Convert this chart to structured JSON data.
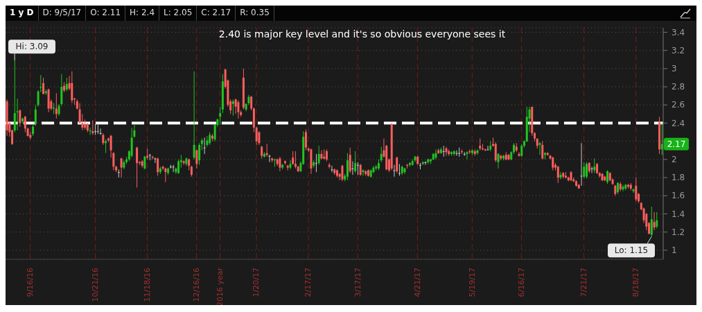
{
  "chart_data": {
    "type": "candlestick",
    "title": "1 y D",
    "subtitle": "D: 9/5/17  O: 2.11  H: 2.4  L: 2.05  C: 2.17  R: 0.35",
    "colors": [
      "#ff5e5e",
      "#ff5e5e",
      "#ff5e5e",
      "#22c322",
      "#22c322",
      "#ff5e5e",
      "#22c322",
      "#ff5e5e",
      "#ff5e5e",
      "#ff5e5e",
      "#22c322",
      "#22c322",
      "#22c322",
      "#22c322",
      "#ff5e5e",
      "#22c322",
      "#ff5e5e",
      "#ff5e5e",
      "#22c322",
      "#ff5e5e",
      "#22c322",
      "#22c322",
      "#ff5e5e",
      "#22c322",
      "#ff5e5e",
      "#ff5e5e",
      "#ff5e5e",
      "#ff5e5e",
      "#ff5e5e",
      "#ff5e5e",
      "#ff5e5e",
      "#ff5e5e",
      "#22c322",
      "#ff5e5e",
      "#c8c8c8",
      "#c8c8c8",
      "#c8c8c8",
      "#ff5e5e",
      "#22c322",
      "#ff5e5e",
      "#ff5e5e",
      "#ff5e5e",
      "#ff5e5e",
      "#c8c8c8",
      "#ff5e5e",
      "#22c322",
      "#22c322",
      "#22c322",
      "#22c322",
      "#22c322",
      "#ff5e5e",
      "#ff5e5e",
      "#ff5e5e",
      "#22c322",
      "#ff5e5e",
      "#c8c8c8",
      "#ff5e5e",
      "#c8c8c8",
      "#ff5e5e",
      "#22c322",
      "#ff5e5e",
      "#ff5e5e",
      "#22c322",
      "#c8c8c8",
      "#c8c8c8",
      "#22c322",
      "#22c322",
      "#22c322",
      "#ff5e5e",
      "#22c322",
      "#ff5e5e",
      "#ff5e5e",
      "#22c322",
      "#ff5e5e",
      "#22c322",
      "#22c322",
      "#c8c8c8",
      "#22c322",
      "#22c322",
      "#ff5e5e",
      "#22c322",
      "#22c322",
      "#22c322",
      "#22c322",
      "#ff5e5e",
      "#ff5e5e",
      "#ff5e5e",
      "#22c322",
      "#ff5e5e",
      "#ff5e5e",
      "#ff5e5e",
      "#ff5e5e",
      "#22c322",
      "#22c322",
      "#ff5e5e",
      "#ff5e5e",
      "#ff5e5e",
      "#ff5e5e",
      "#ff5e5e",
      "#22c322",
      "#ff5e5e",
      "#c8c8c8",
      "#ff5e5e",
      "#22c322",
      "#ff5e5e",
      "#ff5e5e",
      "#22c322",
      "#ff5e5e",
      "#ff5e5e",
      "#22c322",
      "#ff5e5e",
      "#ff5e5e",
      "#ff5e5e",
      "#22c322",
      "#22c322",
      "#ff5e5e",
      "#ff5e5e",
      "#ff5e5e",
      "#22c322",
      "#c8c8c8",
      "#22c322",
      "#ff5e5e",
      "#ff5e5e",
      "#ff5e5e",
      "#ff5e5e",
      "#c8c8c8",
      "#ff5e5e",
      "#ff5e5e",
      "#ff5e5e",
      "#ff5e5e",
      "#22c322",
      "#22c322",
      "#ff5e5e",
      "#c8c8c8",
      "#22c322",
      "#c8c8c8",
      "#ff5e5e",
      "#22c322",
      "#ff5e5e",
      "#ff5e5e",
      "#22c322",
      "#22c322",
      "#22c322",
      "#22c322",
      "#22c322",
      "#ff5e5e",
      "#ff5e5e",
      "#ff5e5e",
      "#ff5e5e",
      "#c8c8c8",
      "#ff5e5e",
      "#c8c8c8",
      "#22c322",
      "#22c322",
      "#ff5e5e",
      "#22c322",
      "#22c322",
      "#22c322",
      "#ff5e5e",
      "#c8c8c8",
      "#22c322",
      "#c8c8c8",
      "#22c322",
      "#22c322",
      "#22c322",
      "#22c322",
      "#ff5e5e",
      "#22c322",
      "#c8c8c8",
      "#ff5e5e",
      "#ff5e5e",
      "#22c322",
      "#22c322",
      "#c8c8c8",
      "#c8c8c8",
      "#ff5e5e",
      "#c8c8c8",
      "#22c322",
      "#ff5e5e",
      "#22c322",
      "#ff5e5e",
      "#22c322",
      "#ff5e5e",
      "#ff5e5e",
      "#ff5e5e",
      "#c8c8c8",
      "#22c322",
      "#ff5e5e",
      "#ff5e5e",
      "#22c322",
      "#ff5e5e",
      "#22c322",
      "#ff5e5e",
      "#ff5e5e",
      "#22c322",
      "#22c322",
      "#ff5e5e",
      "#ff5e5e",
      "#22c322",
      "#22c322",
      "#22c322",
      "#22c322",
      "#ff5e5e",
      "#ff5e5e",
      "#ff5e5e",
      "#22c322",
      "#ff5e5e",
      "#22c322",
      "#ff5e5e",
      "#ff5e5e",
      "#ff5e5e",
      "#ff5e5e",
      "#ff5e5e",
      "#22c322",
      "#ff5e5e",
      "#ff5e5e",
      "#ff5e5e",
      "#ff5e5e",
      "#ff5e5e",
      "#ff5e5e",
      "#ff5e5e",
      "#c8c8c8",
      "#22c322",
      "#22c322",
      "#ff5e5e",
      "#c8c8c8",
      "#22c322",
      "#ff5e5e",
      "#ff5e5e",
      "#ff5e5e",
      "#ff5e5e",
      "#22c322",
      "#ff5e5e",
      "#ff5e5e",
      "#ff5e5e",
      "#22c322",
      "#ff5e5e",
      "#22c322",
      "#22c322",
      "#ff5e5e",
      "#ff5e5e",
      "#22c322",
      "#ff5e5e",
      "#ff5e5e",
      "#ff5e5e",
      "#ff5e5e",
      "#ff5e5e",
      "#ff5e5e",
      "#22c322",
      "#ff5e5e",
      "#22c322",
      "#ff5e5e",
      "#22c322"
    ],
    "categories": [
      null,
      null,
      null,
      null,
      null,
      null,
      null,
      null,
      null,
      "9/16/16",
      null,
      null,
      null,
      null,
      null,
      null,
      null,
      null,
      null,
      null,
      null,
      null,
      null,
      null,
      null,
      null,
      null,
      null,
      null,
      null,
      null,
      null,
      null,
      null,
      "10/21/16",
      null,
      null,
      null,
      null,
      null,
      null,
      null,
      null,
      null,
      null,
      null,
      null,
      null,
      null,
      null,
      null,
      null,
      null,
      null,
      "11/18/16",
      null,
      null,
      null,
      null,
      null,
      null,
      null,
      null,
      null,
      null,
      null,
      null,
      null,
      null,
      null,
      null,
      null,
      null,
      "12/16/16",
      null,
      null,
      null,
      null,
      null,
      null,
      null,
      null,
      "2016 year",
      null,
      null,
      null,
      null,
      null,
      null,
      null,
      null,
      null,
      null,
      null,
      null,
      null,
      "1/20/17",
      null,
      null,
      null,
      null,
      null,
      null,
      null,
      null,
      null,
      null,
      null,
      null,
      null,
      null,
      null,
      null,
      null,
      null,
      null,
      "2/17/17",
      null,
      null,
      null,
      null,
      null,
      null,
      null,
      null,
      null,
      null,
      null,
      null,
      null,
      null,
      null,
      null,
      null,
      null,
      "3/17/17",
      null,
      null,
      null,
      null,
      null,
      null,
      null,
      null,
      null,
      null,
      null,
      null,
      null,
      null,
      null,
      null,
      null,
      null,
      null,
      null,
      null,
      null,
      "4/21/17",
      null,
      null,
      null,
      null,
      null,
      null,
      null,
      null,
      null,
      null,
      null,
      null,
      null,
      null,
      null,
      null,
      null,
      null,
      null,
      null,
      "5/19/17",
      null,
      null,
      null,
      null,
      null,
      null,
      null,
      null,
      null,
      null,
      null,
      null,
      null,
      null,
      null,
      null,
      null,
      null,
      "6/16/17",
      null,
      null,
      null,
      null,
      null,
      null,
      null,
      null,
      null,
      null,
      null,
      null,
      null,
      null,
      null,
      null,
      null,
      null,
      null,
      null,
      null,
      null,
      null,
      "7/21/17",
      null,
      null,
      null,
      null,
      null,
      null,
      null,
      null,
      null,
      null,
      null,
      null,
      null,
      null,
      null,
      null,
      null,
      null,
      null,
      "8/18/17",
      null,
      null,
      null,
      null,
      null,
      null,
      null,
      null,
      null,
      null
    ],
    "ohlc": [
      [
        2.64,
        2.66,
        2.26,
        2.32
      ],
      [
        2.4,
        2.42,
        2.25,
        2.3
      ],
      [
        2.32,
        2.33,
        2.16,
        2.17
      ],
      [
        2.32,
        3.09,
        2.3,
        2.51
      ],
      [
        2.52,
        2.67,
        2.32,
        2.53
      ],
      [
        2.54,
        2.55,
        2.36,
        2.4
      ],
      [
        2.42,
        2.46,
        2.4,
        2.45
      ],
      [
        2.47,
        2.48,
        2.3,
        2.34
      ],
      [
        2.34,
        2.35,
        2.25,
        2.26
      ],
      [
        2.27,
        2.3,
        2.22,
        2.24
      ],
      [
        2.28,
        2.38,
        2.26,
        2.36
      ],
      [
        2.39,
        2.6,
        2.37,
        2.55
      ],
      [
        2.6,
        2.76,
        2.58,
        2.75
      ],
      [
        2.79,
        2.93,
        2.74,
        2.8
      ],
      [
        2.84,
        2.9,
        2.72,
        2.72
      ],
      [
        2.73,
        2.77,
        2.71,
        2.75
      ],
      [
        2.77,
        2.78,
        2.52,
        2.56
      ],
      [
        2.64,
        2.66,
        2.54,
        2.56
      ],
      [
        2.56,
        2.62,
        2.5,
        2.57
      ],
      [
        2.56,
        2.73,
        2.45,
        2.5
      ],
      [
        2.5,
        2.61,
        2.48,
        2.59
      ],
      [
        2.61,
        2.94,
        2.59,
        2.8
      ],
      [
        2.81,
        2.85,
        2.74,
        2.76
      ],
      [
        2.77,
        2.9,
        2.75,
        2.83
      ],
      [
        2.84,
        2.92,
        2.76,
        2.78
      ],
      [
        2.84,
        2.97,
        2.62,
        2.65
      ],
      [
        2.67,
        2.68,
        2.6,
        2.66
      ],
      [
        2.64,
        2.66,
        2.55,
        2.56
      ],
      [
        2.55,
        2.62,
        2.4,
        2.4
      ],
      [
        2.4,
        2.5,
        2.32,
        2.35
      ],
      [
        2.38,
        2.44,
        2.33,
        2.35
      ],
      [
        2.39,
        2.4,
        2.3,
        2.32
      ],
      [
        2.31,
        2.35,
        2.27,
        2.32
      ],
      [
        2.31,
        2.43,
        2.27,
        2.29
      ],
      [
        2.31,
        2.39,
        2.27,
        2.31
      ],
      [
        2.31,
        2.38,
        2.28,
        2.31
      ],
      [
        2.29,
        2.34,
        2.27,
        2.29
      ],
      [
        2.27,
        2.29,
        2.16,
        2.18
      ],
      [
        2.18,
        2.22,
        2.07,
        2.2
      ],
      [
        2.23,
        2.24,
        2.19,
        2.21
      ],
      [
        2.26,
        2.27,
        2.02,
        2.1
      ],
      [
        2.07,
        2.08,
        1.88,
        1.92
      ],
      [
        1.92,
        1.93,
        1.86,
        1.88
      ],
      [
        1.86,
        1.89,
        1.8,
        1.86
      ],
      [
        2.01,
        2.02,
        1.8,
        1.91
      ],
      [
        1.91,
        1.99,
        1.89,
        1.97
      ],
      [
        1.97,
        2.03,
        1.95,
        2.0
      ],
      [
        2.0,
        2.1,
        1.98,
        2.09
      ],
      [
        2.04,
        2.35,
        2.02,
        2.24
      ],
      [
        2.25,
        2.39,
        2.24,
        2.32
      ],
      [
        2.13,
        2.14,
        1.69,
        1.96
      ],
      [
        1.97,
        1.98,
        1.94,
        1.96
      ],
      [
        1.98,
        1.99,
        1.91,
        1.93
      ],
      [
        1.9,
        2.04,
        1.89,
        2.03
      ],
      [
        2.04,
        2.12,
        2.0,
        2.02
      ],
      [
        2.05,
        2.06,
        1.99,
        2.05
      ],
      [
        2.03,
        2.04,
        2.0,
        2.02
      ],
      [
        2.01,
        2.02,
        1.96,
        2.01
      ],
      [
        2.01,
        2.02,
        1.82,
        1.86
      ],
      [
        1.86,
        1.92,
        1.84,
        1.9
      ],
      [
        1.92,
        1.93,
        1.88,
        1.9
      ],
      [
        1.9,
        1.91,
        1.75,
        1.86
      ],
      [
        1.85,
        1.91,
        1.83,
        1.9
      ],
      [
        1.92,
        1.94,
        1.9,
        1.92
      ],
      [
        1.92,
        1.94,
        1.86,
        1.92
      ],
      [
        1.86,
        1.91,
        1.84,
        1.9
      ],
      [
        1.85,
        2.0,
        1.84,
        1.98
      ],
      [
        1.97,
        2.05,
        1.91,
        1.99
      ],
      [
        1.98,
        1.99,
        1.94,
        1.96
      ],
      [
        1.95,
        2.02,
        1.93,
        2.01
      ],
      [
        2.0,
        2.01,
        1.88,
        1.93
      ],
      [
        1.92,
        1.93,
        1.81,
        1.83
      ],
      [
        2.02,
        2.97,
        2.0,
        2.16
      ],
      [
        2.1,
        2.11,
        1.9,
        1.95
      ],
      [
        1.99,
        2.18,
        1.94,
        2.16
      ],
      [
        2.17,
        2.23,
        2.1,
        2.21
      ],
      [
        2.13,
        2.24,
        2.06,
        2.13
      ],
      [
        2.16,
        2.26,
        2.14,
        2.21
      ],
      [
        2.18,
        2.3,
        2.16,
        2.27
      ],
      [
        2.26,
        2.28,
        2.2,
        2.23
      ],
      [
        2.22,
        2.39,
        2.2,
        2.38
      ],
      [
        2.38,
        2.45,
        2.36,
        2.44
      ],
      [
        2.47,
        2.58,
        2.38,
        2.51
      ],
      [
        2.55,
        2.94,
        2.51,
        2.86
      ],
      [
        2.99,
        3.0,
        2.78,
        2.8
      ],
      [
        2.87,
        2.88,
        2.58,
        2.6
      ],
      [
        2.64,
        2.66,
        2.5,
        2.54
      ],
      [
        2.61,
        2.66,
        2.48,
        2.64
      ],
      [
        2.66,
        2.67,
        2.5,
        2.58
      ],
      [
        2.63,
        2.65,
        2.45,
        2.52
      ],
      [
        2.52,
        2.54,
        2.47,
        2.49
      ],
      [
        2.9,
        3.0,
        2.55,
        2.57
      ],
      [
        2.55,
        2.62,
        2.53,
        2.61
      ],
      [
        2.62,
        2.71,
        2.6,
        2.69
      ],
      [
        2.69,
        2.7,
        2.54,
        2.56
      ],
      [
        2.56,
        2.57,
        2.3,
        2.35
      ],
      [
        2.35,
        2.36,
        2.16,
        2.2
      ],
      [
        2.3,
        2.31,
        2.16,
        2.18
      ],
      [
        2.14,
        2.15,
        2.01,
        2.04
      ],
      [
        2.03,
        2.08,
        2.02,
        2.06
      ],
      [
        2.07,
        2.17,
        2.03,
        2.05
      ],
      [
        2.04,
        2.05,
        1.97,
        2.04
      ],
      [
        2.01,
        2.02,
        1.97,
        1.99
      ],
      [
        1.99,
        2.01,
        1.92,
        2.0
      ],
      [
        2.0,
        2.01,
        1.93,
        1.95
      ],
      [
        2.01,
        2.03,
        1.87,
        1.91
      ],
      [
        1.91,
        1.95,
        1.89,
        1.94
      ],
      [
        1.98,
        1.99,
        1.94,
        1.96
      ],
      [
        1.93,
        1.94,
        1.88,
        1.91
      ],
      [
        1.91,
        1.99,
        1.89,
        1.95
      ],
      [
        2.02,
        2.09,
        1.94,
        1.95
      ],
      [
        1.95,
        2.09,
        1.9,
        1.92
      ],
      [
        1.92,
        1.93,
        1.86,
        1.87
      ],
      [
        1.87,
        1.98,
        1.86,
        1.96
      ],
      [
        1.95,
        2.31,
        1.94,
        2.25
      ],
      [
        2.3,
        2.33,
        2.1,
        2.13
      ],
      [
        2.12,
        2.13,
        2.08,
        2.1
      ],
      [
        2.11,
        2.12,
        1.84,
        1.9
      ],
      [
        1.93,
        1.99,
        1.91,
        1.97
      ],
      [
        1.96,
        2.06,
        1.86,
        1.96
      ],
      [
        1.96,
        2.15,
        1.94,
        2.06
      ],
      [
        2.06,
        2.1,
        2.0,
        2.01
      ],
      [
        2.03,
        2.11,
        2.0,
        2.01
      ],
      [
        2.09,
        2.11,
        1.98,
        2.0
      ],
      [
        1.94,
        1.96,
        1.9,
        1.92
      ],
      [
        1.89,
        1.93,
        1.86,
        1.89
      ],
      [
        1.89,
        1.9,
        1.83,
        1.85
      ],
      [
        1.88,
        1.89,
        1.8,
        1.82
      ],
      [
        1.84,
        1.85,
        1.77,
        1.81
      ],
      [
        1.93,
        1.94,
        1.76,
        1.78
      ],
      [
        1.78,
        1.84,
        1.76,
        1.82
      ],
      [
        1.81,
        2.07,
        1.77,
        1.99
      ],
      [
        2.05,
        2.13,
        1.85,
        1.87
      ],
      [
        1.9,
        1.98,
        1.83,
        1.9
      ],
      [
        1.87,
        2.09,
        1.85,
        1.96
      ],
      [
        1.94,
        1.97,
        1.83,
        1.94
      ],
      [
        1.94,
        1.95,
        1.82,
        1.83
      ],
      [
        1.86,
        1.89,
        1.82,
        1.88
      ],
      [
        1.87,
        1.88,
        1.82,
        1.84
      ],
      [
        1.88,
        1.89,
        1.81,
        1.82
      ],
      [
        1.81,
        1.89,
        1.8,
        1.88
      ],
      [
        1.86,
        1.93,
        1.85,
        1.91
      ],
      [
        1.9,
        1.94,
        1.88,
        1.92
      ],
      [
        1.9,
        2.0,
        1.88,
        1.96
      ],
      [
        1.99,
        2.14,
        1.97,
        2.06
      ],
      [
        2.1,
        2.23,
        2.02,
        2.03
      ],
      [
        2.15,
        2.16,
        1.88,
        1.89
      ],
      [
        2.0,
        2.01,
        1.86,
        1.88
      ],
      [
        2.39,
        2.4,
        1.88,
        1.9
      ],
      [
        1.88,
        1.94,
        1.81,
        1.88
      ],
      [
        2.02,
        2.03,
        1.85,
        1.87
      ],
      [
        1.85,
        1.95,
        1.82,
        1.85
      ],
      [
        1.85,
        1.93,
        1.83,
        1.92
      ],
      [
        1.86,
        1.91,
        1.84,
        1.9
      ],
      [
        1.94,
        1.95,
        1.9,
        1.93
      ],
      [
        1.94,
        1.97,
        1.92,
        1.96
      ],
      [
        1.94,
        2.0,
        1.93,
        1.98
      ],
      [
        1.99,
        2.04,
        1.97,
        2.03
      ],
      [
        2.03,
        2.04,
        1.94,
        1.95
      ],
      [
        1.94,
        1.96,
        1.89,
        1.94
      ],
      [
        1.95,
        1.98,
        1.94,
        1.97
      ],
      [
        1.97,
        1.98,
        1.94,
        1.97
      ],
      [
        1.97,
        2.01,
        1.95,
        2.0
      ],
      [
        1.98,
        2.01,
        1.95,
        2.0
      ],
      [
        2.0,
        2.07,
        1.99,
        2.06
      ],
      [
        2.02,
        2.11,
        2.0,
        2.07
      ],
      [
        2.1,
        2.12,
        2.06,
        2.07
      ],
      [
        2.07,
        2.13,
        2.06,
        2.11
      ],
      [
        2.09,
        2.15,
        2.03,
        2.09
      ],
      [
        2.12,
        2.14,
        2.04,
        2.08
      ],
      [
        2.09,
        2.11,
        2.04,
        2.06
      ],
      [
        2.06,
        2.09,
        2.04,
        2.08
      ],
      [
        2.06,
        2.1,
        2.04,
        2.09
      ],
      [
        2.07,
        2.1,
        2.04,
        2.07
      ],
      [
        2.07,
        2.13,
        2.03,
        2.07
      ],
      [
        2.09,
        2.11,
        2.06,
        2.08
      ],
      [
        2.06,
        2.08,
        2.04,
        2.06
      ],
      [
        2.06,
        2.09,
        2.0,
        2.08
      ],
      [
        2.09,
        2.11,
        2.06,
        2.08
      ],
      [
        2.07,
        2.11,
        2.05,
        2.1
      ],
      [
        2.09,
        2.11,
        2.04,
        2.06
      ],
      [
        2.07,
        2.11,
        2.05,
        2.1
      ],
      [
        2.15,
        2.23,
        2.1,
        2.12
      ],
      [
        2.12,
        2.17,
        2.1,
        2.11
      ],
      [
        2.11,
        2.12,
        2.09,
        2.1
      ],
      [
        2.11,
        2.15,
        2.1,
        2.11
      ],
      [
        2.11,
        2.2,
        2.09,
        2.15
      ],
      [
        2.17,
        2.24,
        2.14,
        2.15
      ],
      [
        2.17,
        2.19,
        1.97,
        1.99
      ],
      [
        1.97,
        2.07,
        1.9,
        2.06
      ],
      [
        2.04,
        2.05,
        1.99,
        2.01
      ],
      [
        2.01,
        2.05,
        1.99,
        2.04
      ],
      [
        2.05,
        2.08,
        1.99,
        2.0
      ],
      [
        2.05,
        2.06,
        1.99,
        2.0
      ],
      [
        2.0,
        2.09,
        1.99,
        2.08
      ],
      [
        2.08,
        2.18,
        2.06,
        2.16
      ],
      [
        2.14,
        2.18,
        2.08,
        2.1
      ],
      [
        2.06,
        2.08,
        2.03,
        2.04
      ],
      [
        2.04,
        2.17,
        2.03,
        2.15
      ],
      [
        2.15,
        2.21,
        2.13,
        2.2
      ],
      [
        2.2,
        2.58,
        2.19,
        2.47
      ],
      [
        2.45,
        2.58,
        2.3,
        2.55
      ],
      [
        2.58,
        2.58,
        2.26,
        2.29
      ],
      [
        2.29,
        2.3,
        2.2,
        2.23
      ],
      [
        2.23,
        2.23,
        2.12,
        2.15
      ],
      [
        2.16,
        2.19,
        2.05,
        2.18
      ],
      [
        2.16,
        2.2,
        2.0,
        2.01
      ],
      [
        2.05,
        2.08,
        2.0,
        2.07
      ],
      [
        2.07,
        2.08,
        2.04,
        2.05
      ],
      [
        2.04,
        2.05,
        2.0,
        2.01
      ],
      [
        2.02,
        2.03,
        1.88,
        1.91
      ],
      [
        1.94,
        1.96,
        1.88,
        1.91
      ],
      [
        1.92,
        1.93,
        1.74,
        1.8
      ],
      [
        1.8,
        1.86,
        1.78,
        1.83
      ],
      [
        1.85,
        1.86,
        1.79,
        1.81
      ],
      [
        1.82,
        1.86,
        1.79,
        1.8
      ],
      [
        1.8,
        1.81,
        1.76,
        1.77
      ],
      [
        1.86,
        1.87,
        1.76,
        1.77
      ],
      [
        1.78,
        1.8,
        1.75,
        1.76
      ],
      [
        1.76,
        1.77,
        1.7,
        1.71
      ],
      [
        1.72,
        1.73,
        1.68,
        1.68
      ],
      [
        1.82,
        2.18,
        1.71,
        1.82
      ],
      [
        1.81,
        1.97,
        1.79,
        1.92
      ],
      [
        1.81,
        1.97,
        1.79,
        1.95
      ],
      [
        1.96,
        1.97,
        1.85,
        1.87
      ],
      [
        1.9,
        1.92,
        1.85,
        1.9
      ],
      [
        1.88,
        2.01,
        1.85,
        1.92
      ],
      [
        1.95,
        1.96,
        1.84,
        1.85
      ],
      [
        1.85,
        1.86,
        1.8,
        1.82
      ],
      [
        1.84,
        1.85,
        1.76,
        1.77
      ],
      [
        1.81,
        1.82,
        1.76,
        1.77
      ],
      [
        1.75,
        1.88,
        1.73,
        1.87
      ],
      [
        1.85,
        1.86,
        1.76,
        1.77
      ],
      [
        1.78,
        1.79,
        1.72,
        1.73
      ],
      [
        1.71,
        1.72,
        1.6,
        1.62
      ],
      [
        1.64,
        1.75,
        1.62,
        1.74
      ],
      [
        1.73,
        1.75,
        1.65,
        1.67
      ],
      [
        1.67,
        1.72,
        1.65,
        1.7
      ],
      [
        1.68,
        1.73,
        1.66,
        1.72
      ],
      [
        1.72,
        1.73,
        1.68,
        1.7
      ],
      [
        1.72,
        1.74,
        1.66,
        1.68
      ],
      [
        1.65,
        1.68,
        1.63,
        1.67
      ],
      [
        1.71,
        1.8,
        1.54,
        1.56
      ],
      [
        1.62,
        1.63,
        1.52,
        1.54
      ],
      [
        1.52,
        1.53,
        1.44,
        1.45
      ],
      [
        1.46,
        1.47,
        1.3,
        1.33
      ],
      [
        1.4,
        1.41,
        1.22,
        1.26
      ],
      [
        1.3,
        1.31,
        1.18,
        1.18
      ],
      [
        1.17,
        1.48,
        1.15,
        1.34
      ],
      [
        1.31,
        1.42,
        1.22,
        1.25
      ],
      [
        1.26,
        1.42,
        1.24,
        1.33
      ],
      [
        2.41,
        2.47,
        2.06,
        2.11
      ],
      [
        2.11,
        2.4,
        2.05,
        2.17
      ]
    ],
    "ylim": [
      0.9,
      3.45
    ],
    "yticks": [
      1,
      1.2,
      1.4,
      1.6,
      1.8,
      2,
      {
        "value": 2.2,
        "label": null
      },
      2.4,
      2.6,
      2.8,
      3,
      3.2,
      3.4
    ],
    "grid": true,
    "ref_lines": [
      {
        "axis": "y",
        "value": 2.4,
        "color": "#ffffff",
        "line_style": "dashed"
      }
    ],
    "annotations": [
      "2.40 is major key level and it's so obvious everyone sees it",
      "Hi: 3.09",
      "Lo: 1.15",
      {
        "text": "2.17",
        "y": 2.17
      }
    ]
  }
}
